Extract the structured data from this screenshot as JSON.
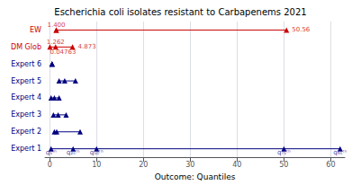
{
  "chart_data": {
    "type": "range",
    "title": "Escherichia coli isolates resistant to Carbapenems 2021",
    "xlabel": "Outcome: Quantiles",
    "xlim": [
      -1,
      63
    ],
    "xticks": [
      0,
      10,
      20,
      30,
      40,
      50,
      60
    ],
    "grid": true,
    "marker": "triangle",
    "rows": [
      {
        "label": "EW",
        "color": "#cc0000",
        "points": [
          1.4,
          1.4,
          50.56
        ]
      },
      {
        "label": "DM Glob",
        "color": "#cc0000",
        "points": [
          0.04763,
          1.262,
          4.873
        ]
      },
      {
        "label": "Expert 6",
        "color": "#000080",
        "points": [
          0.5,
          0.5,
          0.5
        ]
      },
      {
        "label": "Expert 5",
        "color": "#000080",
        "points": [
          2.0,
          3.2,
          5.5
        ]
      },
      {
        "label": "Expert 4",
        "color": "#000080",
        "points": [
          0.3,
          1.0,
          2.0
        ]
      },
      {
        "label": "Expert 3",
        "color": "#000080",
        "points": [
          0.8,
          1.8,
          3.5
        ]
      },
      {
        "label": "Expert 2",
        "color": "#000080",
        "points": [
          1.0,
          1.5,
          6.5
        ]
      },
      {
        "label": "Expert 1",
        "color": "#000080",
        "points": [
          0.3,
          5.0,
          10.0,
          50.0,
          62.0
        ]
      }
    ],
    "annotations": [
      {
        "text": "1.400",
        "x": 1.4,
        "row": "EW",
        "color": "#cc0000",
        "side": "top"
      },
      {
        "text": "50.56",
        "x": 50.56,
        "row": "EW",
        "color": "#cc0000",
        "side": "right"
      },
      {
        "text": "1.262",
        "x": 1.262,
        "row": "DM Glob",
        "color": "#cc0000",
        "side": "top"
      },
      {
        "text": "0.04763",
        "x": 0.04763,
        "row": "DM Glob",
        "color": "#cc0000",
        "side": "bottom-right"
      },
      {
        "text": "4.873",
        "x": 4.873,
        "row": "DM Glob",
        "color": "#cc0000",
        "side": "right"
      },
      {
        "text": "q₅ᵗʰ",
        "x": 0.3,
        "row": "Expert 1",
        "color": "#000080",
        "side": "bottom"
      },
      {
        "text": "q₂₅ᵗʰ",
        "x": 5.0,
        "row": "Expert 1",
        "color": "#000080",
        "side": "bottom"
      },
      {
        "text": "q₅₀ᵗʰ",
        "x": 10.0,
        "row": "Expert 1",
        "color": "#000080",
        "side": "bottom"
      },
      {
        "text": "q₇₅ᵗʰ",
        "x": 50.0,
        "row": "Expert 1",
        "color": "#000080",
        "side": "bottom"
      },
      {
        "text": "q₉₅ᵗʰ",
        "x": 62.0,
        "row": "Expert 1",
        "color": "#000080",
        "side": "bottom"
      }
    ]
  }
}
